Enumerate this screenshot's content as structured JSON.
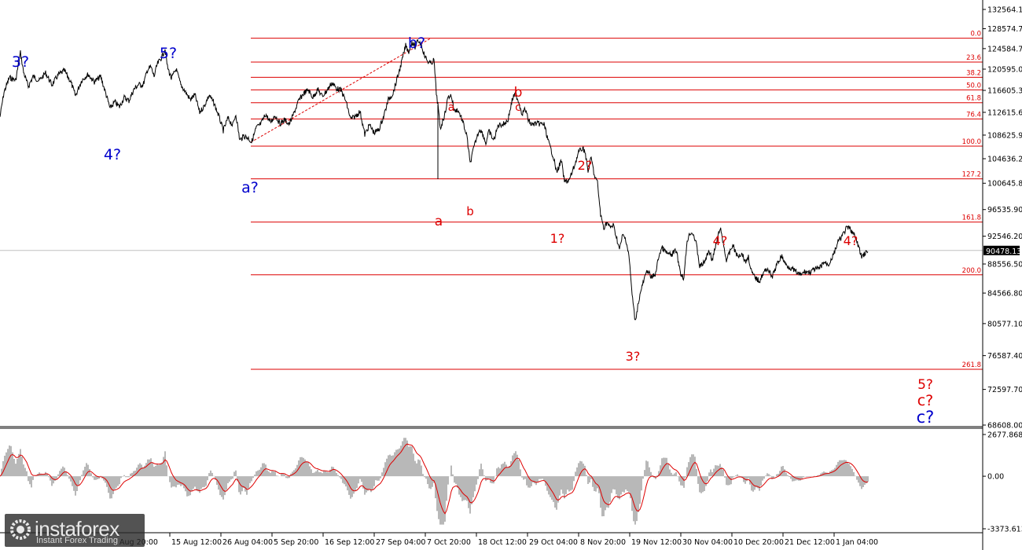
{
  "chart_data": [
    {
      "type": "line",
      "panel": "price",
      "y_axis_ticks": [
        "132564.10",
        "128574.70",
        "124584.70",
        "120595.00",
        "116605.30",
        "112615.60",
        "108625.90",
        "104636.20",
        "100645.80",
        "96535.90",
        "92546.20",
        "88556.50",
        "84566.80",
        "80577.10",
        "76587.40",
        "72597.70",
        "68608.00"
      ],
      "ylim": [
        68608.0,
        132564.1
      ],
      "current_price": "90478.13",
      "x_axis_ticks": [
        "Aug 20:00",
        "15 Aug 12:00",
        "26 Aug 04:00",
        "5 Sep 20:00",
        "16 Sep 12:00",
        "27 Sep 04:00",
        "7 Oct 20:00",
        "18 Oct 12:00",
        "29 Oct 04:00",
        "8 Nov 20:00",
        "19 Nov 12:00",
        "30 Nov 04:00",
        "10 Dec 20:00",
        "21 Dec 12:00",
        "1 Jan 04:00"
      ],
      "fibonacci_levels": [
        {
          "label": "0.0",
          "price": 126650
        },
        {
          "label": "23.6",
          "price": 121950
        },
        {
          "label": "38.2",
          "price": 119050
        },
        {
          "label": "50.0",
          "price": 116700
        },
        {
          "label": "61.8",
          "price": 114350
        },
        {
          "label": "76.4",
          "price": 111450
        },
        {
          "label": "100.0",
          "price": 106750
        },
        {
          "label": "127.2",
          "price": 101350
        },
        {
          "label": "161.8",
          "price": 94650
        },
        {
          "label": "200.0",
          "price": 87050
        },
        {
          "label": "261.8",
          "price": 74950
        }
      ],
      "fib_color": "#dd0000",
      "price_series": [
        [
          0,
          111800
        ],
        [
          5,
          116200
        ],
        [
          12,
          119000
        ],
        [
          20,
          118500
        ],
        [
          26,
          123800
        ],
        [
          30,
          120000
        ],
        [
          36,
          117300
        ],
        [
          42,
          119200
        ],
        [
          50,
          118400
        ],
        [
          58,
          119900
        ],
        [
          66,
          117600
        ],
        [
          74,
          119500
        ],
        [
          82,
          120300
        ],
        [
          90,
          118200
        ],
        [
          96,
          115600
        ],
        [
          104,
          118500
        ],
        [
          112,
          119600
        ],
        [
          120,
          118200
        ],
        [
          128,
          119200
        ],
        [
          134,
          116300
        ],
        [
          140,
          113300
        ],
        [
          146,
          114500
        ],
        [
          152,
          113600
        ],
        [
          158,
          115300
        ],
        [
          164,
          114700
        ],
        [
          170,
          116700
        ],
        [
          176,
          117700
        ],
        [
          182,
          117600
        ],
        [
          188,
          120600
        ],
        [
          192,
          121000
        ],
        [
          196,
          119200
        ],
        [
          200,
          121500
        ],
        [
          206,
          123000
        ],
        [
          210,
          124500
        ],
        [
          213,
          121000
        ],
        [
          218,
          118800
        ],
        [
          224,
          120600
        ],
        [
          230,
          117600
        ],
        [
          236,
          116300
        ],
        [
          242,
          114900
        ],
        [
          248,
          115800
        ],
        [
          254,
          112600
        ],
        [
          260,
          113800
        ],
        [
          266,
          115700
        ],
        [
          272,
          114300
        ],
        [
          278,
          112100
        ],
        [
          284,
          109400
        ],
        [
          290,
          111600
        ],
        [
          296,
          110300
        ],
        [
          300,
          112300
        ],
        [
          305,
          107700
        ],
        [
          310,
          108500
        ],
        [
          316,
          108100
        ],
        [
          320,
          107400
        ],
        [
          326,
          109900
        ],
        [
          332,
          110600
        ],
        [
          338,
          112300
        ],
        [
          344,
          110800
        ],
        [
          350,
          112100
        ],
        [
          356,
          110600
        ],
        [
          362,
          111300
        ],
        [
          368,
          110500
        ],
        [
          374,
          112500
        ],
        [
          380,
          114700
        ],
        [
          386,
          116000
        ],
        [
          392,
          116700
        ],
        [
          398,
          115300
        ],
        [
          404,
          116800
        ],
        [
          410,
          115500
        ],
        [
          416,
          116600
        ],
        [
          422,
          118000
        ],
        [
          428,
          117000
        ],
        [
          434,
          116600
        ],
        [
          440,
          114600
        ],
        [
          446,
          111400
        ],
        [
          452,
          111900
        ],
        [
          458,
          112800
        ],
        [
          464,
          108700
        ],
        [
          470,
          110400
        ],
        [
          476,
          109000
        ],
        [
          482,
          109600
        ],
        [
          488,
          111900
        ],
        [
          494,
          114900
        ],
        [
          500,
          116100
        ],
        [
          506,
          119200
        ],
        [
          510,
          121400
        ],
        [
          516,
          125200
        ],
        [
          520,
          124000
        ],
        [
          524,
          126000
        ],
        [
          528,
          124900
        ],
        [
          532,
          126200
        ],
        [
          536,
          125400
        ],
        [
          540,
          123200
        ],
        [
          544,
          122100
        ],
        [
          548,
          121600
        ],
        [
          552,
          122400
        ],
        [
          555,
          116100
        ],
        [
          557,
          114000
        ],
        [
          560,
          109700
        ],
        [
          566,
          112400
        ],
        [
          570,
          115400
        ],
        [
          574,
          115700
        ],
        [
          578,
          112800
        ],
        [
          582,
          113100
        ],
        [
          586,
          112000
        ],
        [
          590,
          110300
        ],
        [
          594,
          108300
        ],
        [
          598,
          103800
        ],
        [
          602,
          106100
        ],
        [
          606,
          108000
        ],
        [
          610,
          109700
        ],
        [
          614,
          108900
        ],
        [
          618,
          107200
        ],
        [
          622,
          109300
        ],
        [
          628,
          107700
        ],
        [
          634,
          110400
        ],
        [
          640,
          110500
        ],
        [
          646,
          111200
        ],
        [
          652,
          115100
        ],
        [
          656,
          116000
        ],
        [
          660,
          114400
        ],
        [
          664,
          112400
        ],
        [
          668,
          113200
        ],
        [
          672,
          111300
        ],
        [
          676,
          110400
        ],
        [
          680,
          110600
        ],
        [
          686,
          110600
        ],
        [
          692,
          110500
        ],
        [
          698,
          107300
        ],
        [
          704,
          104900
        ],
        [
          708,
          102400
        ],
        [
          714,
          104300
        ],
        [
          718,
          100900
        ],
        [
          724,
          101100
        ],
        [
          730,
          103200
        ],
        [
          736,
          105700
        ],
        [
          740,
          106300
        ],
        [
          744,
          106000
        ],
        [
          748,
          102500
        ],
        [
          752,
          104800
        ],
        [
          756,
          101900
        ],
        [
          760,
          100700
        ],
        [
          764,
          95700
        ],
        [
          768,
          93800
        ],
        [
          772,
          94600
        ],
        [
          776,
          93800
        ],
        [
          780,
          94200
        ],
        [
          784,
          92500
        ],
        [
          788,
          90600
        ],
        [
          792,
          92700
        ],
        [
          796,
          92100
        ],
        [
          800,
          89800
        ],
        [
          804,
          84400
        ],
        [
          808,
          80800
        ],
        [
          812,
          83300
        ],
        [
          816,
          85200
        ],
        [
          820,
          86600
        ],
        [
          824,
          87800
        ],
        [
          828,
          86600
        ],
        [
          834,
          87200
        ],
        [
          838,
          89700
        ],
        [
          842,
          90900
        ],
        [
          848,
          90100
        ],
        [
          854,
          89800
        ],
        [
          860,
          90500
        ],
        [
          866,
          87200
        ],
        [
          870,
          86600
        ],
        [
          874,
          91900
        ],
        [
          878,
          93100
        ],
        [
          882,
          92900
        ],
        [
          886,
          91200
        ],
        [
          890,
          88200
        ],
        [
          896,
          88800
        ],
        [
          902,
          90500
        ],
        [
          906,
          89100
        ],
        [
          910,
          90900
        ],
        [
          916,
          93800
        ],
        [
          920,
          91500
        ],
        [
          924,
          89100
        ],
        [
          928,
          90100
        ],
        [
          932,
          91300
        ],
        [
          938,
          89600
        ],
        [
          944,
          90100
        ],
        [
          948,
          88800
        ],
        [
          952,
          89600
        ],
        [
          956,
          87400
        ],
        [
          960,
          86700
        ],
        [
          966,
          86200
        ],
        [
          970,
          87100
        ],
        [
          976,
          88000
        ],
        [
          982,
          86700
        ],
        [
          988,
          88400
        ],
        [
          994,
          89700
        ],
        [
          1000,
          88400
        ],
        [
          1006,
          88000
        ],
        [
          1012,
          87500
        ],
        [
          1018,
          87000
        ],
        [
          1024,
          87500
        ],
        [
          1030,
          87400
        ],
        [
          1036,
          87800
        ],
        [
          1042,
          87900
        ],
        [
          1048,
          88800
        ],
        [
          1054,
          88500
        ],
        [
          1060,
          89800
        ],
        [
          1066,
          91700
        ],
        [
          1072,
          92700
        ],
        [
          1076,
          93600
        ],
        [
          1080,
          93800
        ],
        [
          1084,
          93200
        ],
        [
          1088,
          92300
        ],
        [
          1092,
          91100
        ],
        [
          1096,
          89500
        ],
        [
          1100,
          90100
        ],
        [
          1104,
          90300
        ]
      ],
      "wave_labels_blue": [
        "3?",
        "5?",
        "4?",
        "a?",
        "b?",
        "c?"
      ],
      "wave_labels_red": [
        "a",
        "b",
        "c",
        "a",
        "b",
        "1?",
        "2?",
        "3?",
        "4?",
        "4?",
        "5?",
        "c?"
      ]
    },
    {
      "type": "area",
      "panel": "oscillator",
      "y_axis_ticks": [
        "2677.868",
        "0.00",
        "-3373.613"
      ],
      "ylim": [
        -3373.613,
        2677.868
      ]
    }
  ],
  "watermark": {
    "brand": "instaforex",
    "tagline": "Instant Forex Trading"
  }
}
